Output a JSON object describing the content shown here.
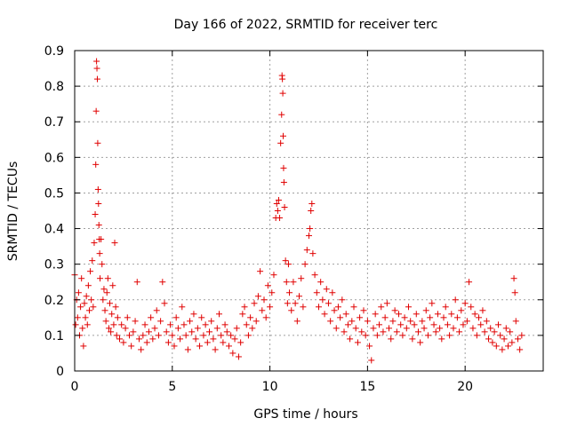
{
  "chart_data": {
    "type": "scatter",
    "title": "Day 166 of 2022, SRMTID for receiver terc",
    "xlabel": "GPS time / hours",
    "ylabel": "SRMTID / TECUs",
    "xlim": [
      0,
      24
    ],
    "ylim": [
      0,
      0.9
    ],
    "x_ticks": [
      0,
      5,
      10,
      15,
      20
    ],
    "x_tick_labels": [
      "0",
      "5",
      "10",
      "15",
      "20"
    ],
    "y_ticks": [
      0,
      0.1,
      0.2,
      0.3,
      0.4,
      0.5,
      0.6,
      0.7,
      0.8,
      0.9
    ],
    "y_tick_labels": [
      "0",
      "0.1",
      "0.2",
      "0.3",
      "0.4",
      "0.5",
      "0.6",
      "0.7",
      "0.8",
      "0.9"
    ],
    "grid": true,
    "marker": "+",
    "color": "#e00000",
    "series": [
      {
        "name": "SRMTID",
        "points": [
          [
            0.0,
            0.27
          ],
          [
            0.05,
            0.13
          ],
          [
            0.1,
            0.2
          ],
          [
            0.15,
            0.15
          ],
          [
            0.2,
            0.22
          ],
          [
            0.25,
            0.1
          ],
          [
            0.3,
            0.18
          ],
          [
            0.35,
            0.26
          ],
          [
            0.4,
            0.12
          ],
          [
            0.45,
            0.07
          ],
          [
            0.5,
            0.19
          ],
          [
            0.55,
            0.15
          ],
          [
            0.6,
            0.21
          ],
          [
            0.65,
            0.13
          ],
          [
            0.7,
            0.24
          ],
          [
            0.75,
            0.17
          ],
          [
            0.8,
            0.28
          ],
          [
            0.85,
            0.2
          ],
          [
            0.9,
            0.31
          ],
          [
            0.95,
            0.18
          ],
          [
            1.0,
            0.36
          ],
          [
            1.05,
            0.44
          ],
          [
            1.08,
            0.58
          ],
          [
            1.1,
            0.73
          ],
          [
            1.12,
            0.87
          ],
          [
            1.14,
            0.85
          ],
          [
            1.16,
            0.82
          ],
          [
            1.18,
            0.64
          ],
          [
            1.2,
            0.51
          ],
          [
            1.22,
            0.47
          ],
          [
            1.24,
            0.41
          ],
          [
            1.26,
            0.37
          ],
          [
            1.28,
            0.33
          ],
          [
            1.3,
            0.26
          ],
          [
            1.35,
            0.37
          ],
          [
            1.4,
            0.3
          ],
          [
            1.45,
            0.2
          ],
          [
            1.5,
            0.23
          ],
          [
            1.55,
            0.17
          ],
          [
            1.6,
            0.14
          ],
          [
            1.65,
            0.22
          ],
          [
            1.7,
            0.26
          ],
          [
            1.75,
            0.12
          ],
          [
            1.8,
            0.19
          ],
          [
            1.85,
            0.11
          ],
          [
            1.9,
            0.16
          ],
          [
            1.95,
            0.24
          ],
          [
            2.0,
            0.13
          ],
          [
            2.05,
            0.36
          ],
          [
            2.1,
            0.18
          ],
          [
            2.15,
            0.1
          ],
          [
            2.2,
            0.15
          ],
          [
            2.3,
            0.09
          ],
          [
            2.4,
            0.13
          ],
          [
            2.5,
            0.08
          ],
          [
            2.6,
            0.12
          ],
          [
            2.7,
            0.15
          ],
          [
            2.8,
            0.1
          ],
          [
            2.9,
            0.07
          ],
          [
            3.0,
            0.11
          ],
          [
            3.1,
            0.14
          ],
          [
            3.2,
            0.25
          ],
          [
            3.3,
            0.09
          ],
          [
            3.4,
            0.06
          ],
          [
            3.5,
            0.1
          ],
          [
            3.6,
            0.13
          ],
          [
            3.7,
            0.08
          ],
          [
            3.8,
            0.11
          ],
          [
            3.9,
            0.15
          ],
          [
            4.0,
            0.09
          ],
          [
            4.1,
            0.12
          ],
          [
            4.2,
            0.17
          ],
          [
            4.3,
            0.1
          ],
          [
            4.4,
            0.14
          ],
          [
            4.5,
            0.25
          ],
          [
            4.6,
            0.19
          ],
          [
            4.7,
            0.11
          ],
          [
            4.8,
            0.08
          ],
          [
            4.9,
            0.13
          ],
          [
            5.0,
            0.1
          ],
          [
            5.1,
            0.07
          ],
          [
            5.2,
            0.15
          ],
          [
            5.3,
            0.12
          ],
          [
            5.4,
            0.09
          ],
          [
            5.5,
            0.18
          ],
          [
            5.6,
            0.13
          ],
          [
            5.7,
            0.1
          ],
          [
            5.8,
            0.06
          ],
          [
            5.9,
            0.14
          ],
          [
            6.0,
            0.11
          ],
          [
            6.1,
            0.16
          ],
          [
            6.2,
            0.09
          ],
          [
            6.3,
            0.12
          ],
          [
            6.4,
            0.07
          ],
          [
            6.5,
            0.15
          ],
          [
            6.6,
            0.1
          ],
          [
            6.7,
            0.13
          ],
          [
            6.8,
            0.08
          ],
          [
            6.9,
            0.11
          ],
          [
            7.0,
            0.14
          ],
          [
            7.1,
            0.09
          ],
          [
            7.2,
            0.06
          ],
          [
            7.3,
            0.12
          ],
          [
            7.4,
            0.16
          ],
          [
            7.5,
            0.1
          ],
          [
            7.6,
            0.08
          ],
          [
            7.7,
            0.13
          ],
          [
            7.8,
            0.11
          ],
          [
            7.9,
            0.07
          ],
          [
            8.0,
            0.1
          ],
          [
            8.1,
            0.05
          ],
          [
            8.2,
            0.09
          ],
          [
            8.3,
            0.12
          ],
          [
            8.4,
            0.04
          ],
          [
            8.5,
            0.08
          ],
          [
            8.6,
            0.16
          ],
          [
            8.7,
            0.18
          ],
          [
            8.8,
            0.13
          ],
          [
            8.9,
            0.1
          ],
          [
            9.0,
            0.15
          ],
          [
            9.1,
            0.12
          ],
          [
            9.2,
            0.19
          ],
          [
            9.3,
            0.14
          ],
          [
            9.4,
            0.21
          ],
          [
            9.5,
            0.28
          ],
          [
            9.6,
            0.17
          ],
          [
            9.7,
            0.2
          ],
          [
            9.8,
            0.15
          ],
          [
            9.9,
            0.24
          ],
          [
            10.0,
            0.18
          ],
          [
            10.1,
            0.22
          ],
          [
            10.2,
            0.27
          ],
          [
            10.3,
            0.43
          ],
          [
            10.35,
            0.47
          ],
          [
            10.4,
            0.45
          ],
          [
            10.45,
            0.48
          ],
          [
            10.5,
            0.43
          ],
          [
            10.55,
            0.64
          ],
          [
            10.6,
            0.72
          ],
          [
            10.62,
            0.83
          ],
          [
            10.64,
            0.82
          ],
          [
            10.66,
            0.78
          ],
          [
            10.68,
            0.66
          ],
          [
            10.7,
            0.57
          ],
          [
            10.72,
            0.53
          ],
          [
            10.75,
            0.46
          ],
          [
            10.8,
            0.31
          ],
          [
            10.85,
            0.25
          ],
          [
            10.9,
            0.19
          ],
          [
            10.95,
            0.3
          ],
          [
            11.0,
            0.22
          ],
          [
            11.1,
            0.17
          ],
          [
            11.2,
            0.25
          ],
          [
            11.3,
            0.19
          ],
          [
            11.4,
            0.14
          ],
          [
            11.5,
            0.21
          ],
          [
            11.6,
            0.26
          ],
          [
            11.7,
            0.18
          ],
          [
            11.8,
            0.3
          ],
          [
            11.9,
            0.34
          ],
          [
            12.0,
            0.38
          ],
          [
            12.05,
            0.4
          ],
          [
            12.1,
            0.45
          ],
          [
            12.15,
            0.47
          ],
          [
            12.2,
            0.33
          ],
          [
            12.3,
            0.27
          ],
          [
            12.4,
            0.22
          ],
          [
            12.5,
            0.18
          ],
          [
            12.6,
            0.25
          ],
          [
            12.7,
            0.2
          ],
          [
            12.8,
            0.16
          ],
          [
            12.9,
            0.23
          ],
          [
            13.0,
            0.19
          ],
          [
            13.1,
            0.14
          ],
          [
            13.2,
            0.22
          ],
          [
            13.3,
            0.17
          ],
          [
            13.4,
            0.12
          ],
          [
            13.5,
            0.18
          ],
          [
            13.6,
            0.15
          ],
          [
            13.7,
            0.2
          ],
          [
            13.8,
            0.11
          ],
          [
            13.9,
            0.16
          ],
          [
            14.0,
            0.13
          ],
          [
            14.1,
            0.09
          ],
          [
            14.2,
            0.14
          ],
          [
            14.3,
            0.18
          ],
          [
            14.4,
            0.12
          ],
          [
            14.5,
            0.08
          ],
          [
            14.6,
            0.15
          ],
          [
            14.7,
            0.11
          ],
          [
            14.8,
            0.17
          ],
          [
            14.9,
            0.1
          ],
          [
            15.0,
            0.14
          ],
          [
            15.1,
            0.07
          ],
          [
            15.2,
            0.03
          ],
          [
            15.3,
            0.12
          ],
          [
            15.4,
            0.16
          ],
          [
            15.5,
            0.1
          ],
          [
            15.6,
            0.13
          ],
          [
            15.7,
            0.18
          ],
          [
            15.8,
            0.11
          ],
          [
            15.9,
            0.15
          ],
          [
            16.0,
            0.19
          ],
          [
            16.1,
            0.12
          ],
          [
            16.2,
            0.09
          ],
          [
            16.3,
            0.14
          ],
          [
            16.4,
            0.17
          ],
          [
            16.5,
            0.11
          ],
          [
            16.6,
            0.16
          ],
          [
            16.7,
            0.13
          ],
          [
            16.8,
            0.1
          ],
          [
            16.9,
            0.15
          ],
          [
            17.0,
            0.12
          ],
          [
            17.1,
            0.18
          ],
          [
            17.2,
            0.14
          ],
          [
            17.3,
            0.09
          ],
          [
            17.4,
            0.13
          ],
          [
            17.5,
            0.16
          ],
          [
            17.6,
            0.11
          ],
          [
            17.7,
            0.08
          ],
          [
            17.8,
            0.14
          ],
          [
            17.9,
            0.12
          ],
          [
            18.0,
            0.17
          ],
          [
            18.1,
            0.1
          ],
          [
            18.2,
            0.15
          ],
          [
            18.3,
            0.19
          ],
          [
            18.4,
            0.13
          ],
          [
            18.5,
            0.11
          ],
          [
            18.6,
            0.16
          ],
          [
            18.7,
            0.12
          ],
          [
            18.8,
            0.09
          ],
          [
            18.9,
            0.15
          ],
          [
            19.0,
            0.18
          ],
          [
            19.1,
            0.13
          ],
          [
            19.2,
            0.1
          ],
          [
            19.3,
            0.16
          ],
          [
            19.4,
            0.12
          ],
          [
            19.5,
            0.2
          ],
          [
            19.6,
            0.15
          ],
          [
            19.7,
            0.11
          ],
          [
            19.8,
            0.17
          ],
          [
            19.9,
            0.13
          ],
          [
            20.0,
            0.19
          ],
          [
            20.1,
            0.14
          ],
          [
            20.2,
            0.25
          ],
          [
            20.3,
            0.18
          ],
          [
            20.4,
            0.12
          ],
          [
            20.5,
            0.16
          ],
          [
            20.6,
            0.1
          ],
          [
            20.7,
            0.15
          ],
          [
            20.8,
            0.13
          ],
          [
            20.9,
            0.17
          ],
          [
            21.0,
            0.11
          ],
          [
            21.1,
            0.14
          ],
          [
            21.2,
            0.09
          ],
          [
            21.3,
            0.12
          ],
          [
            21.4,
            0.08
          ],
          [
            21.5,
            0.11
          ],
          [
            21.6,
            0.07
          ],
          [
            21.7,
            0.13
          ],
          [
            21.8,
            0.1
          ],
          [
            21.9,
            0.06
          ],
          [
            22.0,
            0.09
          ],
          [
            22.1,
            0.12
          ],
          [
            22.2,
            0.07
          ],
          [
            22.3,
            0.11
          ],
          [
            22.4,
            0.08
          ],
          [
            22.5,
            0.26
          ],
          [
            22.55,
            0.22
          ],
          [
            22.6,
            0.14
          ],
          [
            22.7,
            0.09
          ],
          [
            22.8,
            0.06
          ],
          [
            22.9,
            0.1
          ]
        ]
      }
    ]
  }
}
